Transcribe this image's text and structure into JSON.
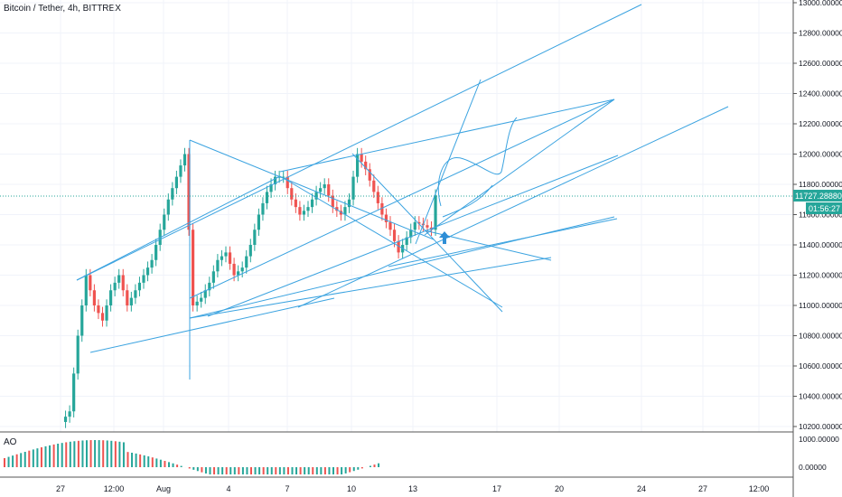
{
  "chart_title": "Bitcoin / Tether, 4h, BITTREX",
  "indicator_label": "AO",
  "price_axis": [
    "13000.00000",
    "12800.00000",
    "12600.00000",
    "12400.00000",
    "12200.00000",
    "12000.00000",
    "11800.00000",
    "11600.00000",
    "11400.00000",
    "11200.00000",
    "11000.00000",
    "10800.00000",
    "10600.00000",
    "10400.00000",
    "10200.00000"
  ],
  "ao_axis": [
    "1000.00000",
    "0.00000"
  ],
  "time_axis": [
    "27",
    "12:00",
    "Aug",
    "4",
    "7",
    "10",
    "13",
    "17",
    "20",
    "24",
    "27",
    "12:00"
  ],
  "last_price": "11727.28880",
  "countdown": "01:56:27",
  "colors": {
    "up": "#26a69a",
    "down": "#ef5350",
    "lines": "#3ba3e0",
    "price_badge": "#26a69a"
  },
  "chart_data": {
    "type": "candlestick",
    "symbol": "Bitcoin / Tether",
    "interval": "4h",
    "exchange": "BITTREX",
    "ylim": [
      10200,
      13000
    ],
    "close_points": [
      [
        0,
        10230
      ],
      [
        2,
        10300
      ],
      [
        4,
        10800
      ],
      [
        6,
        11200
      ],
      [
        8,
        11000
      ],
      [
        10,
        10900
      ],
      [
        12,
        11100
      ],
      [
        14,
        11200
      ],
      [
        16,
        11000
      ],
      [
        18,
        11100
      ],
      [
        20,
        11200
      ],
      [
        22,
        11300
      ],
      [
        24,
        11500
      ],
      [
        26,
        11700
      ],
      [
        28,
        11850
      ],
      [
        30,
        12000
      ],
      [
        32,
        11000
      ],
      [
        34,
        11050
      ],
      [
        36,
        11150
      ],
      [
        38,
        11300
      ],
      [
        40,
        11350
      ],
      [
        42,
        11200
      ],
      [
        44,
        11250
      ],
      [
        46,
        11400
      ],
      [
        48,
        11600
      ],
      [
        50,
        11750
      ],
      [
        52,
        11850
      ],
      [
        54,
        11850
      ],
      [
        56,
        11700
      ],
      [
        58,
        11600
      ],
      [
        60,
        11650
      ],
      [
        62,
        11750
      ],
      [
        64,
        11800
      ],
      [
        66,
        11650
      ],
      [
        68,
        11600
      ],
      [
        70,
        11700
      ],
      [
        72,
        12000
      ],
      [
        74,
        11900
      ],
      [
        76,
        11750
      ],
      [
        78,
        11600
      ],
      [
        80,
        11500
      ],
      [
        82,
        11350
      ],
      [
        84,
        11450
      ],
      [
        86,
        11550
      ],
      [
        88,
        11530
      ],
      [
        90,
        11500
      ],
      [
        91,
        11727
      ]
    ]
  }
}
